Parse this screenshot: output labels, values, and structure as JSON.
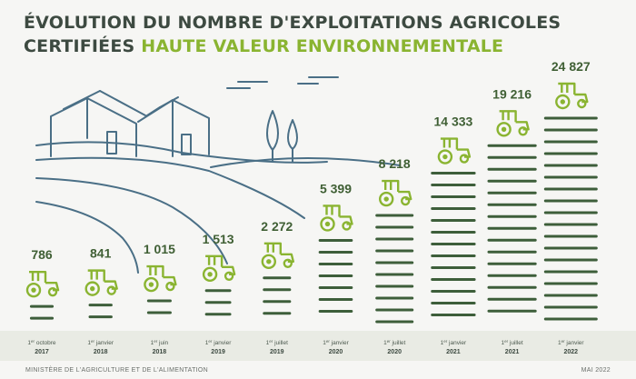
{
  "title": {
    "line1": "ÉVOLUTION DU NOMBRE D'EXPLOITATIONS AGRICOLES",
    "line2_dark": "CERTIFIÉES",
    "line2_green": "HAUTE VALEUR ENVIRONNEMENTALE"
  },
  "colors": {
    "dark_green": "#3d5e3a",
    "light_green": "#8ab431",
    "line_art": "#4a6f86",
    "text_dark": "#3d4a41"
  },
  "icons": {
    "data_point": "tractor-icon",
    "illustration": "farm-landscape-illustration"
  },
  "chart_data": {
    "type": "bar",
    "title": "ÉVOLUTION DU NOMBRE D'EXPLOITATIONS AGRICOLES CERTIFIÉES HAUTE VALEUR ENVIRONNEMENTALE",
    "categories": [
      {
        "day": "1",
        "suffix": "er",
        "month": "octobre",
        "year": "2017"
      },
      {
        "day": "1",
        "suffix": "er",
        "month": "janvier",
        "year": "2018"
      },
      {
        "day": "1",
        "suffix": "er",
        "month": "juin",
        "year": "2018"
      },
      {
        "day": "1",
        "suffix": "er",
        "month": "janvier",
        "year": "2019"
      },
      {
        "day": "1",
        "suffix": "er",
        "month": "juillet",
        "year": "2019"
      },
      {
        "day": "1",
        "suffix": "er",
        "month": "janvier",
        "year": "2020"
      },
      {
        "day": "1",
        "suffix": "er",
        "month": "juillet",
        "year": "2020"
      },
      {
        "day": "1",
        "suffix": "er",
        "month": "janvier",
        "year": "2021"
      },
      {
        "day": "1",
        "suffix": "er",
        "month": "juillet",
        "year": "2021"
      },
      {
        "day": "1",
        "suffix": "er",
        "month": "janvier",
        "year": "2022"
      }
    ],
    "values": [
      786,
      841,
      1015,
      1513,
      2272,
      5399,
      8218,
      14333,
      19216,
      24827
    ],
    "value_labels": [
      "786",
      "841",
      "1 015",
      "1 513",
      "2 272",
      "5 399",
      "8 218",
      "14 333",
      "19 216",
      "24 827"
    ],
    "ylim": [
      0,
      24827
    ],
    "xlabel": "",
    "ylabel": ""
  },
  "footer": {
    "left": "MINISTÈRE DE L'AGRICULTURE ET DE L'ALIMENTATION",
    "right": "MAI 2022"
  }
}
